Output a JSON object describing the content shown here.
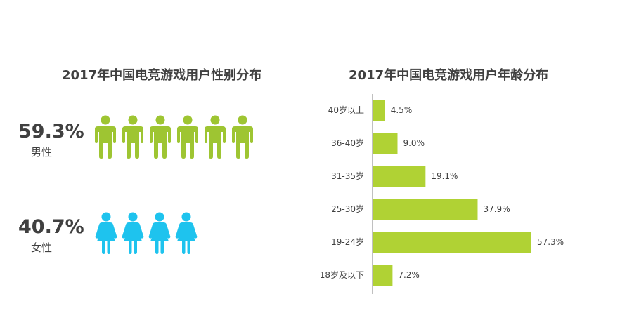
{
  "gender": {
    "title": "2017年中国电竞游戏用户性别分布",
    "male": {
      "pct": "59.3%",
      "label": "男性",
      "icon_count": 6,
      "color": "#9ec532"
    },
    "female": {
      "pct": "40.7%",
      "label": "女性",
      "icon_count": 4,
      "color": "#1ec3ee"
    }
  },
  "age": {
    "title": "2017年中国电竞游戏用户年龄分布"
  },
  "chart_data": {
    "type": "bar",
    "orientation": "horizontal",
    "title": "2017年中国电竞游戏用户年龄分布",
    "categories": [
      "40岁以上",
      "36-40岁",
      "31-35岁",
      "25-30岁",
      "19-24岁",
      "18岁及以下"
    ],
    "values": [
      4.5,
      9.0,
      19.1,
      37.9,
      57.3,
      7.2
    ],
    "value_labels": [
      "4.5%",
      "9.0%",
      "19.1%",
      "37.9%",
      "57.3%",
      "7.2%"
    ],
    "unit": "%",
    "bar_color": "#b0d234",
    "axis_color": "#808080",
    "xlim": [
      0,
      60
    ],
    "grid": false,
    "legend": "none"
  }
}
